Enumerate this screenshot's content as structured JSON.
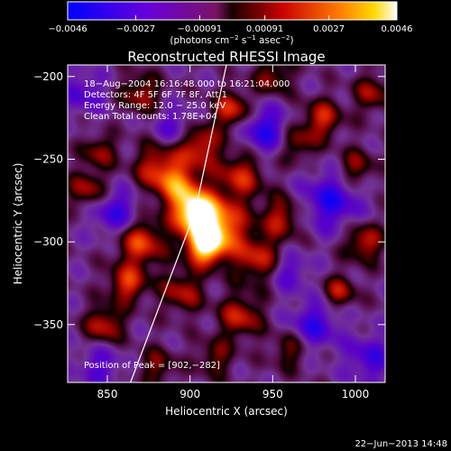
{
  "chart_data": {
    "type": "heatmap",
    "title": "Reconstructed RHESSI Image",
    "xlabel": "Heliocentric X (arcsec)",
    "ylabel": "Heliocentric Y (arcsec)",
    "xlim": [
      826,
      1018
    ],
    "ylim": [
      -385,
      -193
    ],
    "x_ticks": [
      850,
      900,
      950,
      1000
    ],
    "y_ticks": [
      -200,
      -250,
      -300,
      -350
    ],
    "x_tick_labels": [
      "850",
      "900",
      "950",
      "1000"
    ],
    "y_tick_labels": [
      "−200",
      "−250",
      "−300",
      "−350"
    ],
    "colorbar": {
      "range": [
        -0.0046,
        0.0046
      ],
      "ticks": [
        -0.0046,
        -0.0027,
        -0.00091,
        0.00091,
        0.0027,
        0.0046
      ],
      "tick_labels": [
        "−0.0046",
        "−0.0027",
        "−0.00091",
        "0.00091",
        "0.0027",
        "0.0046"
      ],
      "unit_label_parts": [
        "(photons cm",
        "−2",
        " s",
        "−1",
        " asec",
        "−2",
        ")"
      ]
    },
    "annotations": [
      "18−Aug−2004 16:16:48.000 to 16:21:04.000",
      "Detectors: 4F 5F 6F 7F 8F, Att 1",
      "Energy Range: 12.0 − 25.0 keV",
      "Clean     Total counts: 1.78E+04"
    ],
    "peak_label": "Position of Peak = [902,−282]",
    "peak": [
      902,
      -282
    ],
    "limb_line": [
      [
        864,
        -385
      ],
      [
        903,
        -282
      ],
      [
        922,
        -193
      ]
    ],
    "blobs": [
      {
        "x": 903,
        "y": -282,
        "amp": 1.0,
        "s": 9
      },
      {
        "x": 909,
        "y": -302,
        "amp": 0.9,
        "s": 8
      },
      {
        "x": 918,
        "y": -290,
        "amp": 0.65,
        "s": 11
      },
      {
        "x": 893,
        "y": -266,
        "amp": 0.55,
        "s": 9
      },
      {
        "x": 880,
        "y": -255,
        "amp": 0.45,
        "s": 10
      },
      {
        "x": 905,
        "y": -242,
        "amp": 0.5,
        "s": 9
      },
      {
        "x": 930,
        "y": -260,
        "amp": 0.45,
        "s": 10
      },
      {
        "x": 925,
        "y": -220,
        "amp": 0.5,
        "s": 8
      },
      {
        "x": 870,
        "y": -300,
        "amp": 0.55,
        "s": 10
      },
      {
        "x": 862,
        "y": -325,
        "amp": 0.5,
        "s": 8
      },
      {
        "x": 848,
        "y": -350,
        "amp": 0.45,
        "s": 8
      },
      {
        "x": 838,
        "y": -268,
        "amp": 0.4,
        "s": 8
      },
      {
        "x": 845,
        "y": -245,
        "amp": 0.35,
        "s": 7
      },
      {
        "x": 940,
        "y": -310,
        "amp": 0.45,
        "s": 10
      },
      {
        "x": 955,
        "y": -285,
        "amp": 0.4,
        "s": 9
      },
      {
        "x": 980,
        "y": -225,
        "amp": 0.45,
        "s": 8
      },
      {
        "x": 965,
        "y": -240,
        "amp": 0.35,
        "s": 8
      },
      {
        "x": 1005,
        "y": -300,
        "amp": 0.45,
        "s": 8
      },
      {
        "x": 990,
        "y": -330,
        "amp": 0.4,
        "s": 7
      },
      {
        "x": 930,
        "y": -345,
        "amp": 0.45,
        "s": 9
      },
      {
        "x": 895,
        "y": -330,
        "amp": 0.4,
        "s": 9
      },
      {
        "x": 915,
        "y": -370,
        "amp": 0.3,
        "s": 8
      },
      {
        "x": 960,
        "y": -365,
        "amp": 0.3,
        "s": 8
      },
      {
        "x": 1000,
        "y": -255,
        "amp": 0.35,
        "s": 8
      },
      {
        "x": 880,
        "y": -375,
        "amp": 0.3,
        "s": 8
      },
      {
        "x": 950,
        "y": -200,
        "amp": 0.35,
        "s": 8
      },
      {
        "x": 870,
        "y": -210,
        "amp": 0.4,
        "s": 8
      },
      {
        "x": 1010,
        "y": -210,
        "amp": 0.35,
        "s": 8
      },
      {
        "x": 855,
        "y": -282,
        "amp": -0.4,
        "s": 10
      },
      {
        "x": 945,
        "y": -232,
        "amp": -0.45,
        "s": 10
      },
      {
        "x": 985,
        "y": -275,
        "amp": -0.45,
        "s": 12
      },
      {
        "x": 975,
        "y": -350,
        "amp": -0.4,
        "s": 10
      },
      {
        "x": 890,
        "y": -230,
        "amp": -0.3,
        "s": 8
      },
      {
        "x": 1008,
        "y": -370,
        "amp": -0.35,
        "s": 10
      },
      {
        "x": 845,
        "y": -375,
        "amp": -0.3,
        "s": 9
      },
      {
        "x": 960,
        "y": -318,
        "amp": -0.3,
        "s": 8
      },
      {
        "x": 835,
        "y": -210,
        "amp": -0.3,
        "s": 9
      }
    ]
  },
  "footer": {
    "timestamp": "22−Jun−2013 14:48"
  }
}
